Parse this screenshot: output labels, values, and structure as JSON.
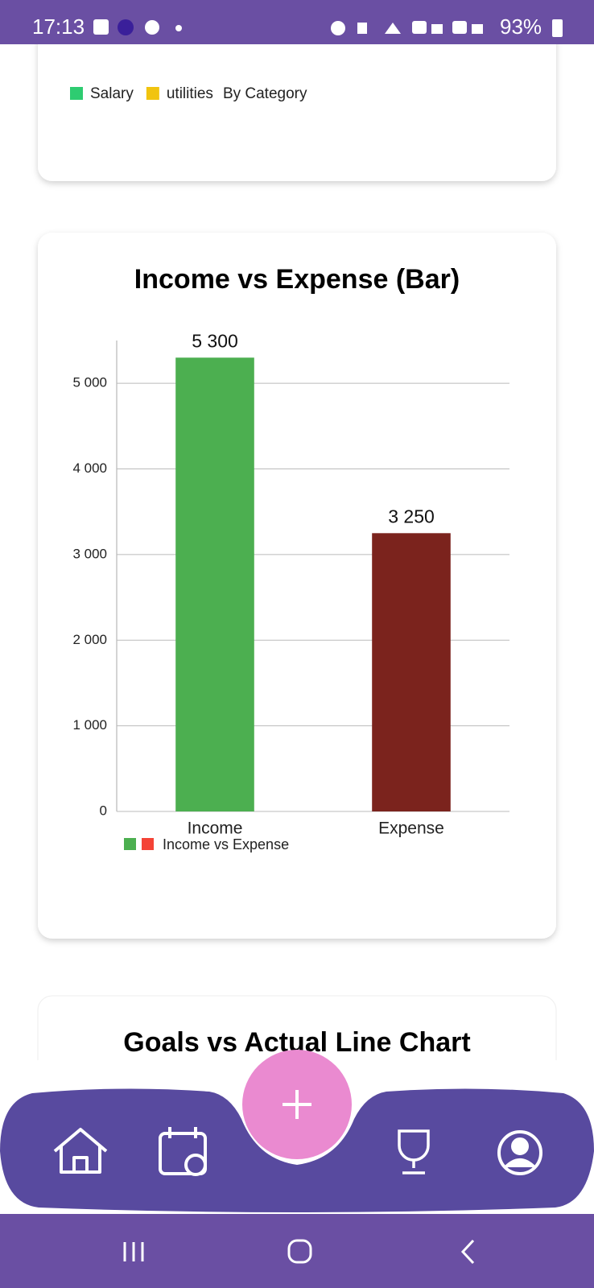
{
  "status_bar": {
    "time": "17:13",
    "battery": "93%"
  },
  "category_card": {
    "legend": [
      {
        "label": "Salary",
        "color": "#2ecc71"
      },
      {
        "label": "utilities",
        "color": "#f1c40f"
      }
    ],
    "caption": "By Category"
  },
  "chart_data": {
    "type": "bar",
    "title": "Income vs Expense (Bar)",
    "categories": [
      "Income",
      "Expense"
    ],
    "values": [
      5300,
      3250
    ],
    "value_labels": [
      "5 300",
      "3 250"
    ],
    "colors": [
      "#4caf50",
      "#7b231d"
    ],
    "ylim": [
      0,
      5500
    ],
    "yticks": [
      0,
      {
        "value": 1000,
        "label": "1 000"
      },
      {
        "value": 2000,
        "label": "2 000"
      },
      {
        "value": 3000,
        "label": "3 000"
      },
      {
        "value": 4000,
        "label": "4 000"
      },
      {
        "value": 5000,
        "label": "5 000"
      }
    ],
    "grid": true,
    "legend": {
      "label": "Income vs Expense",
      "colors": [
        "#4caf50",
        "#f44336"
      ]
    }
  },
  "next_card": {
    "title": "Goals vs Actual Line Chart"
  }
}
